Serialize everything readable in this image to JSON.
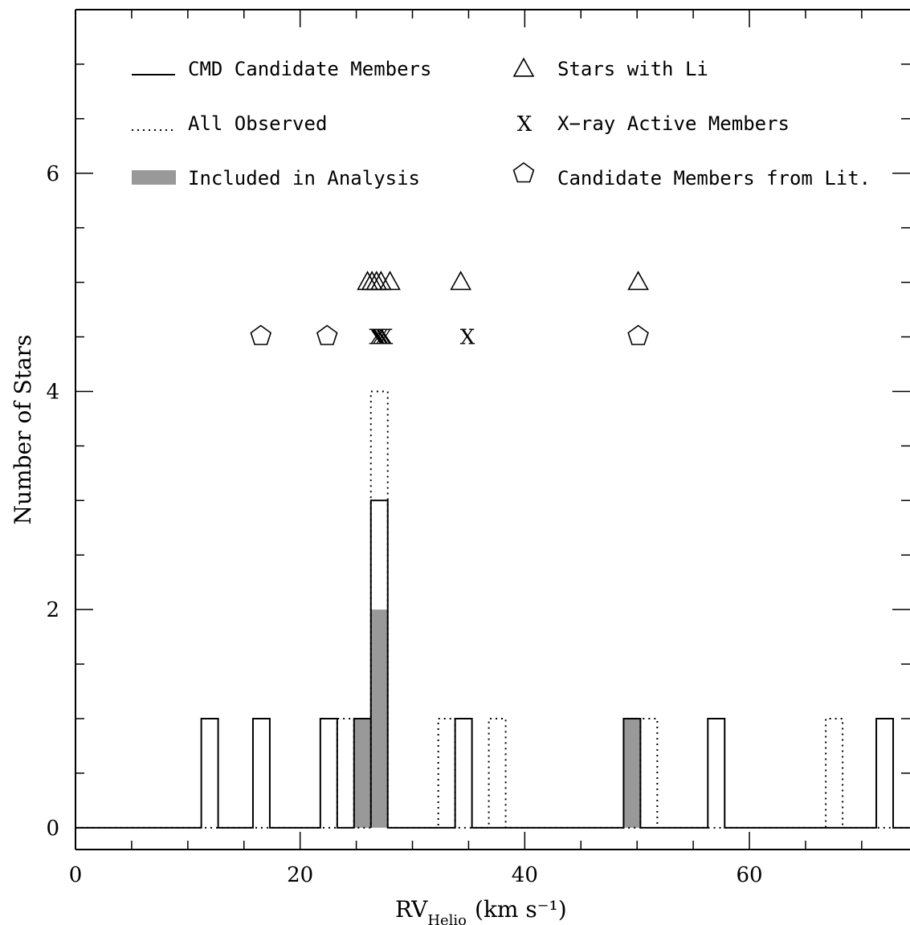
{
  "chart_data": {
    "type": "bar",
    "xlabel": "RV",
    "xlabel_subscript": "Helio",
    "xlabel_unit": "(km s⁻¹)",
    "ylabel": "Number of Stars",
    "xlim": [
      0,
      74.3
    ],
    "ylim": [
      -0.2,
      7.5
    ],
    "x_ticks": [
      0,
      20,
      40,
      60
    ],
    "y_ticks": [
      0,
      2,
      4,
      6
    ],
    "bin_width": 1.5,
    "histograms": {
      "cmd_candidates": {
        "name": "CMD Candidate Members",
        "bins": [
          {
            "x": 11.2,
            "count": 1
          },
          {
            "x": 15.8,
            "count": 1
          },
          {
            "x": 21.8,
            "count": 1
          },
          {
            "x": 24.8,
            "count": 1
          },
          {
            "x": 26.3,
            "count": 3
          },
          {
            "x": 33.8,
            "count": 1
          },
          {
            "x": 48.8,
            "count": 1
          },
          {
            "x": 56.3,
            "count": 1
          },
          {
            "x": 71.3,
            "count": 1
          }
        ]
      },
      "all_observed": {
        "name": "All Observed",
        "bins": [
          {
            "x": 23.3,
            "count": 1
          },
          {
            "x": 26.3,
            "count": 4
          },
          {
            "x": 32.3,
            "count": 1
          },
          {
            "x": 36.8,
            "count": 1
          },
          {
            "x": 50.3,
            "count": 1
          },
          {
            "x": 66.8,
            "count": 1
          }
        ]
      },
      "included": {
        "name": "Included in Analysis",
        "bins": [
          {
            "x": 24.8,
            "count": 1
          },
          {
            "x": 26.3,
            "count": 2
          },
          {
            "x": 48.8,
            "count": 1
          }
        ]
      }
    },
    "markers": {
      "li_stars": {
        "name": "Stars with Li",
        "y": 5.0,
        "x": [
          26.0,
          26.4,
          26.8,
          27.2,
          28.0,
          34.3,
          50.1
        ]
      },
      "xray": {
        "name": "X−ray Active Members",
        "y": 4.5,
        "symbol": "X",
        "x": [
          26.8,
          27.0,
          27.3,
          27.6,
          34.9
        ]
      },
      "lit_candidates": {
        "name": "Candidate Members from Lit.",
        "y": 4.5,
        "x": [
          16.5,
          22.4,
          50.1
        ]
      }
    },
    "legend_placement": "top"
  }
}
